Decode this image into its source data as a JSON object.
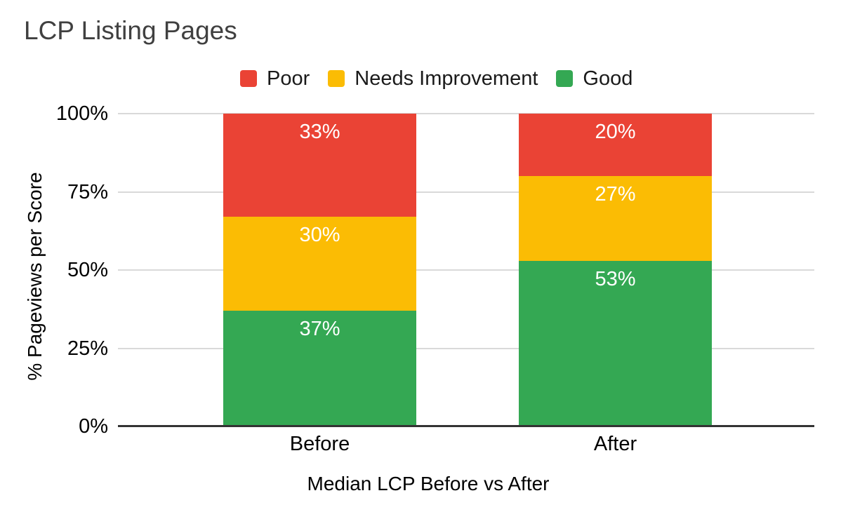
{
  "chart_data": {
    "type": "bar",
    "stacked": true,
    "title": "LCP Listing Pages",
    "xlabel": "Median LCP Before vs After",
    "ylabel": "% Pageviews per Score",
    "categories": [
      "Before",
      "After"
    ],
    "series": [
      {
        "name": "Good",
        "color": "#34A853",
        "values": [
          37,
          53
        ]
      },
      {
        "name": "Needs Improvement",
        "color": "#FBBC04",
        "values": [
          30,
          27
        ]
      },
      {
        "name": "Poor",
        "color": "#EA4335",
        "values": [
          33,
          20
        ]
      }
    ],
    "bar_value_labels": [
      [
        "37%",
        "30%",
        "33%"
      ],
      [
        "53%",
        "27%",
        "20%"
      ]
    ],
    "ylim": [
      0,
      100
    ],
    "y_ticks": [
      0,
      25,
      50,
      75,
      100
    ],
    "y_tick_labels": [
      "0%",
      "25%",
      "50%",
      "75%",
      "100%"
    ],
    "grid": true,
    "legend": {
      "position": "top",
      "items": [
        {
          "label": "Poor",
          "color": "#EA4335"
        },
        {
          "label": "Needs Improvement",
          "color": "#FBBC04"
        },
        {
          "label": "Good",
          "color": "#34A853"
        }
      ]
    }
  },
  "style": {
    "background": "#FFFFFF",
    "grid_color": "#D9D9D9",
    "axis_color": "#333333",
    "title_color": "#404040",
    "label_color": "#000000",
    "bar_label_color": "#FFFFFF"
  }
}
